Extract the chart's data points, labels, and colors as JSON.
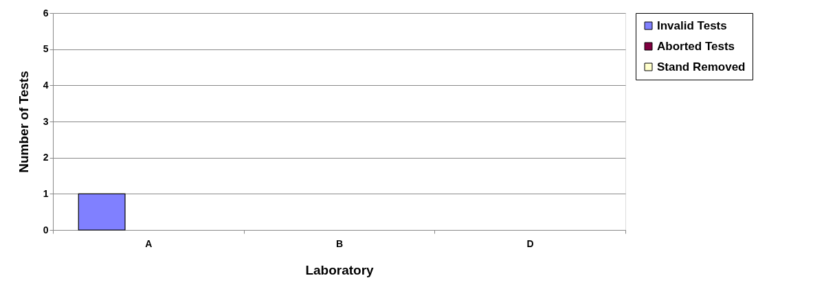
{
  "chart_data": {
    "type": "bar",
    "xlabel": "Laboratory",
    "ylabel": "Number of Tests",
    "categories": [
      "A",
      "B",
      "D"
    ],
    "series": [
      {
        "name": "Invalid Tests",
        "color": "#8080ff",
        "values": [
          1,
          0,
          0
        ]
      },
      {
        "name": "Aborted Tests",
        "color": "#800040",
        "values": [
          0,
          0,
          0
        ]
      },
      {
        "name": "Stand Removed",
        "color": "#ffffcc",
        "values": [
          0,
          0,
          0
        ]
      }
    ],
    "ylim": [
      0,
      6
    ],
    "yticks": [
      0,
      1,
      2,
      3,
      4,
      5,
      6
    ],
    "grid": "y",
    "legend": "right"
  }
}
